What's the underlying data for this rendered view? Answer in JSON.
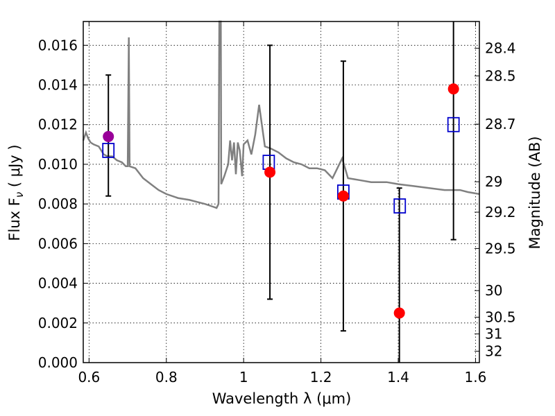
{
  "chart_data": {
    "type": "scatter",
    "xlabel": "Wavelength  λ (μm)",
    "ylabel": "Flux  F",
    "ylabel_sub": "ν",
    "ylabel_unit": "  ( μJy )",
    "y2label": "Magnitude (AB)",
    "xlim": [
      0.585,
      1.61
    ],
    "ylim": [
      0.0,
      0.0172
    ],
    "grid": true,
    "x_ticks": [
      {
        "value": 0.6,
        "label": "0.6"
      },
      {
        "value": 0.8,
        "label": "0.8"
      },
      {
        "value": 1.0,
        "label": "1"
      },
      {
        "value": 1.2,
        "label": "1.2"
      },
      {
        "value": 1.4,
        "label": "1.4"
      },
      {
        "value": 1.6,
        "label": "1.6"
      }
    ],
    "y_ticks": [
      {
        "value": 0.0,
        "label": "0.000"
      },
      {
        "value": 0.002,
        "label": "0.002"
      },
      {
        "value": 0.004,
        "label": "0.004"
      },
      {
        "value": 0.006,
        "label": "0.006"
      },
      {
        "value": 0.008,
        "label": "0.008"
      },
      {
        "value": 0.01,
        "label": "0.010"
      },
      {
        "value": 0.012,
        "label": "0.012"
      },
      {
        "value": 0.014,
        "label": "0.014"
      },
      {
        "value": 0.016,
        "label": "0.016"
      }
    ],
    "y2_ticks": [
      {
        "mag": 28.4,
        "label": "28.4"
      },
      {
        "mag": 28.5,
        "label": "28.5"
      },
      {
        "mag": 28.7,
        "label": "28.7"
      },
      {
        "mag": 29.0,
        "label": "29"
      },
      {
        "mag": 29.2,
        "label": "29.2"
      },
      {
        "mag": 29.5,
        "label": "29.5"
      },
      {
        "mag": 30.0,
        "label": "30"
      },
      {
        "mag": 30.5,
        "label": "30.5"
      },
      {
        "mag": 31.0,
        "label": "31"
      },
      {
        "mag": 32.0,
        "label": "32"
      }
    ],
    "model_spectrum": {
      "color": "#808080",
      "points": [
        [
          0.585,
          0.0112
        ],
        [
          0.592,
          0.0116
        ],
        [
          0.598,
          0.0113
        ],
        [
          0.604,
          0.0111
        ],
        [
          0.612,
          0.011
        ],
        [
          0.625,
          0.0109
        ],
        [
          0.638,
          0.0105
        ],
        [
          0.648,
          0.0104
        ],
        [
          0.66,
          0.0104
        ],
        [
          0.672,
          0.0102
        ],
        [
          0.685,
          0.0101
        ],
        [
          0.695,
          0.0099
        ],
        [
          0.7,
          0.0099
        ],
        [
          0.703,
          0.0164
        ],
        [
          0.705,
          0.0099
        ],
        [
          0.72,
          0.0098
        ],
        [
          0.74,
          0.0093
        ],
        [
          0.76,
          0.009
        ],
        [
          0.78,
          0.0087
        ],
        [
          0.8,
          0.0085
        ],
        [
          0.83,
          0.0083
        ],
        [
          0.86,
          0.0082
        ],
        [
          0.88,
          0.0081
        ],
        [
          0.9,
          0.008
        ],
        [
          0.915,
          0.0079
        ],
        [
          0.93,
          0.0078
        ],
        [
          0.935,
          0.008
        ],
        [
          0.937,
          0.0172
        ],
        [
          0.941,
          0.0172
        ],
        [
          0.942,
          0.009
        ],
        [
          0.95,
          0.0094
        ],
        [
          0.96,
          0.01
        ],
        [
          0.965,
          0.0112
        ],
        [
          0.97,
          0.0102
        ],
        [
          0.975,
          0.0111
        ],
        [
          0.98,
          0.0095
        ],
        [
          0.985,
          0.0111
        ],
        [
          0.99,
          0.0107
        ],
        [
          0.996,
          0.0094
        ],
        [
          1.0,
          0.011
        ],
        [
          1.01,
          0.0112
        ],
        [
          1.02,
          0.0105
        ],
        [
          1.03,
          0.0115
        ],
        [
          1.04,
          0.013
        ],
        [
          1.055,
          0.0109
        ],
        [
          1.07,
          0.0108
        ],
        [
          1.09,
          0.0106
        ],
        [
          1.11,
          0.0103
        ],
        [
          1.13,
          0.0101
        ],
        [
          1.15,
          0.01
        ],
        [
          1.17,
          0.0098
        ],
        [
          1.19,
          0.0098
        ],
        [
          1.21,
          0.0097
        ],
        [
          1.23,
          0.0093
        ],
        [
          1.255,
          0.0103
        ],
        [
          1.27,
          0.0093
        ],
        [
          1.3,
          0.0092
        ],
        [
          1.33,
          0.0091
        ],
        [
          1.37,
          0.0091
        ],
        [
          1.4,
          0.009
        ],
        [
          1.44,
          0.0089
        ],
        [
          1.48,
          0.0088
        ],
        [
          1.52,
          0.0087
        ],
        [
          1.56,
          0.0087
        ],
        [
          1.58,
          0.0086
        ],
        [
          1.61,
          0.0085
        ]
      ]
    },
    "observed": {
      "color": "#ff0000",
      "points": [
        {
          "x": 1.068,
          "y": 0.0096,
          "yerr_low": 0.0032,
          "yerr_high": 0.016
        },
        {
          "x": 1.258,
          "y": 0.0084,
          "yerr_low": 0.0016,
          "yerr_high": 0.0152
        },
        {
          "x": 1.403,
          "y": 0.0025,
          "yerr_low": 0.0,
          "yerr_high": 0.0088
        },
        {
          "x": 1.543,
          "y": 0.0138,
          "yerr_low": 0.0062,
          "yerr_high": 0.0172
        }
      ]
    },
    "observed_optical": {
      "color": "#990099",
      "points": [
        {
          "x": 0.65,
          "y": 0.0114,
          "yerr_low": 0.0084,
          "yerr_high": 0.0145
        }
      ]
    },
    "model_bands": {
      "color": "#0000cc",
      "points": [
        {
          "x": 0.65,
          "y": 0.0107
        },
        {
          "x": 1.065,
          "y": 0.0101
        },
        {
          "x": 1.258,
          "y": 0.0086
        },
        {
          "x": 1.404,
          "y": 0.0079
        },
        {
          "x": 1.543,
          "y": 0.012
        }
      ]
    }
  }
}
